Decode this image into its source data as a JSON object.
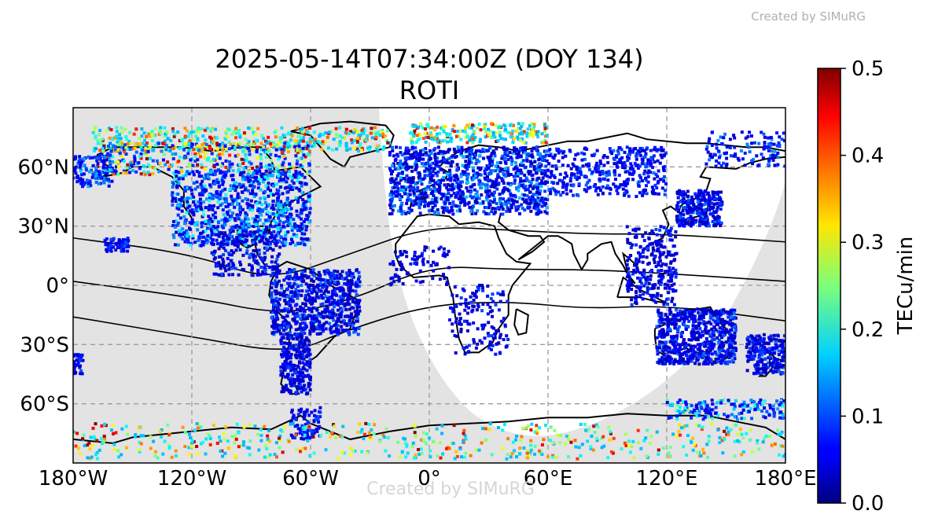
{
  "watermark": {
    "top": "Created by SIMuRG",
    "center": "Created by SIMuRG"
  },
  "chart_data": {
    "type": "scatter",
    "title": "2025-05-14T07:34:00Z (DOY 134)",
    "subtitle": "ROTI",
    "xlabel": "",
    "ylabel": "",
    "xlim": [
      -180,
      180
    ],
    "ylim": [
      -90,
      90
    ],
    "grid": true,
    "x_ticks": [
      {
        "value": -180,
        "label": "180°W"
      },
      {
        "value": -120,
        "label": "120°W"
      },
      {
        "value": -60,
        "label": "60°W"
      },
      {
        "value": 0,
        "label": "0°"
      },
      {
        "value": 60,
        "label": "60°E"
      },
      {
        "value": 120,
        "label": "120°E"
      },
      {
        "value": 180,
        "label": "180°E"
      }
    ],
    "y_ticks": [
      {
        "value": 60,
        "label": "60°N"
      },
      {
        "value": 30,
        "label": "30°N"
      },
      {
        "value": 0,
        "label": "0°"
      },
      {
        "value": -30,
        "label": "30°S"
      },
      {
        "value": -60,
        "label": "60°S"
      }
    ],
    "colorbar": {
      "label": "TECu/min",
      "colormap": "jet",
      "range": [
        0.0,
        0.5
      ],
      "ticks": [
        {
          "value": 0.0,
          "label": "0.0"
        },
        {
          "value": 0.1,
          "label": "0.1"
        },
        {
          "value": 0.2,
          "label": "0.2"
        },
        {
          "value": 0.3,
          "label": "0.3"
        },
        {
          "value": 0.4,
          "label": "0.4"
        },
        {
          "value": 0.5,
          "label": "0.5"
        }
      ]
    },
    "night_color": "#e3e3e3",
    "regions": [
      {
        "lon": [
          -170,
          -20
        ],
        "lat": [
          68,
          80
        ],
        "n": 420,
        "roti": [
          0.15,
          0.5
        ]
      },
      {
        "lon": [
          -170,
          -60
        ],
        "lat": [
          56,
          72
        ],
        "n": 380,
        "roti": [
          0.06,
          0.5
        ]
      },
      {
        "lon": [
          -130,
          -60
        ],
        "lat": [
          20,
          58
        ],
        "n": 900,
        "roti": [
          0.04,
          0.2
        ]
      },
      {
        "lon": [
          -180,
          -160
        ],
        "lat": [
          50,
          66
        ],
        "n": 120,
        "roti": [
          0.05,
          0.18
        ]
      },
      {
        "lon": [
          -164,
          -152
        ],
        "lat": [
          17,
          24
        ],
        "n": 60,
        "roti": [
          0.05,
          0.12
        ]
      },
      {
        "lon": [
          -110,
          -75
        ],
        "lat": [
          5,
          28
        ],
        "n": 200,
        "roti": [
          0.03,
          0.12
        ]
      },
      {
        "lon": [
          -80,
          -35
        ],
        "lat": [
          -25,
          8
        ],
        "n": 700,
        "roti": [
          0.03,
          0.12
        ]
      },
      {
        "lon": [
          -75,
          -60
        ],
        "lat": [
          -55,
          -25
        ],
        "n": 260,
        "roti": [
          0.03,
          0.1
        ]
      },
      {
        "lon": [
          -70,
          -55
        ],
        "lat": [
          -78,
          -62
        ],
        "n": 80,
        "roti": [
          0.04,
          0.12
        ]
      },
      {
        "lon": [
          -20,
          60
        ],
        "lat": [
          36,
          70
        ],
        "n": 1100,
        "roti": [
          0.03,
          0.16
        ]
      },
      {
        "lon": [
          -10,
          60
        ],
        "lat": [
          72,
          82
        ],
        "n": 220,
        "roti": [
          0.15,
          0.5
        ]
      },
      {
        "lon": [
          60,
          120
        ],
        "lat": [
          45,
          70
        ],
        "n": 380,
        "roti": [
          0.04,
          0.12
        ]
      },
      {
        "lon": [
          125,
          148
        ],
        "lat": [
          30,
          48
        ],
        "n": 280,
        "roti": [
          0.03,
          0.12
        ]
      },
      {
        "lon": [
          100,
          125
        ],
        "lat": [
          -10,
          30
        ],
        "n": 260,
        "roti": [
          0.03,
          0.1
        ]
      },
      {
        "lon": [
          10,
          40
        ],
        "lat": [
          -35,
          0
        ],
        "n": 140,
        "roti": [
          0.03,
          0.1
        ]
      },
      {
        "lon": [
          -20,
          10
        ],
        "lat": [
          0,
          20
        ],
        "n": 80,
        "roti": [
          0.03,
          0.09
        ]
      },
      {
        "lon": [
          115,
          155
        ],
        "lat": [
          -40,
          -12
        ],
        "n": 650,
        "roti": [
          0.03,
          0.12
        ]
      },
      {
        "lon": [
          160,
          180
        ],
        "lat": [
          -45,
          -25
        ],
        "n": 220,
        "roti": [
          0.03,
          0.12
        ]
      },
      {
        "lon": [
          -180,
          -175
        ],
        "lat": [
          -45,
          -35
        ],
        "n": 40,
        "roti": [
          0.04,
          0.1
        ]
      },
      {
        "lon": [
          -180,
          180
        ],
        "lat": [
          -88,
          -70
        ],
        "n": 520,
        "roti": [
          0.15,
          0.5
        ]
      },
      {
        "lon": [
          120,
          180
        ],
        "lat": [
          -68,
          -58
        ],
        "n": 160,
        "roti": [
          0.05,
          0.25
        ]
      },
      {
        "lon": [
          140,
          180
        ],
        "lat": [
          60,
          78
        ],
        "n": 120,
        "roti": [
          0.04,
          0.14
        ]
      }
    ]
  }
}
